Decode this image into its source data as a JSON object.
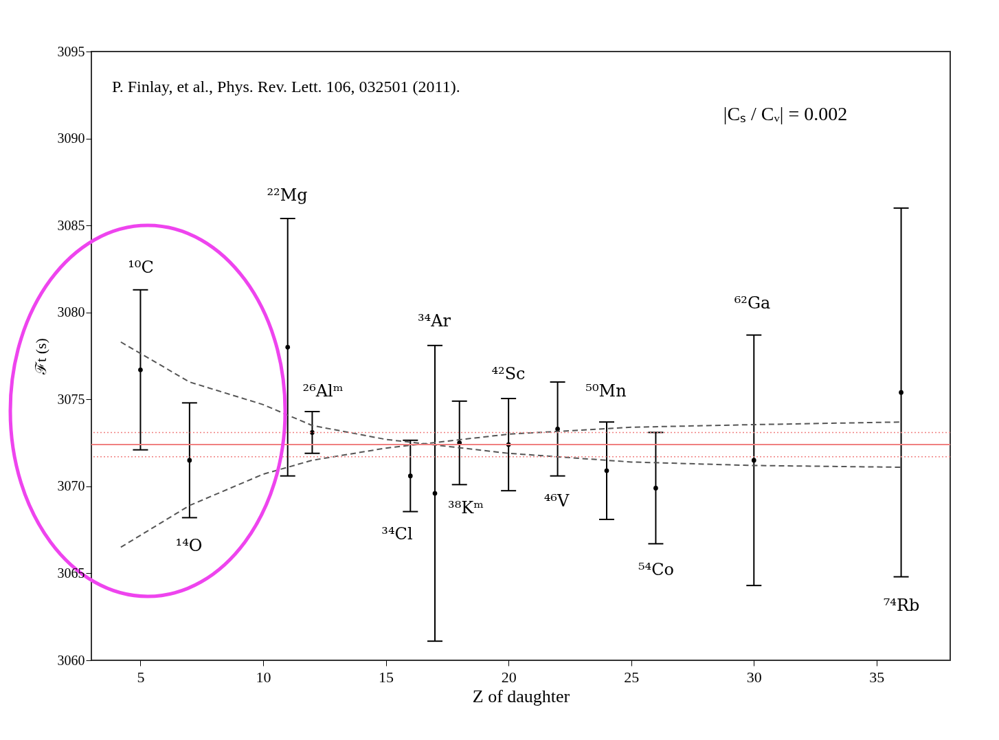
{
  "chart_data": {
    "type": "scatter",
    "xlabel": "Z of daughter",
    "ylabel": "ℱt (s)",
    "xlim": [
      3,
      38
    ],
    "ylim": [
      3060,
      3095
    ],
    "xticks": [
      5,
      10,
      15,
      20,
      25,
      30,
      35
    ],
    "yticks": [
      3060,
      3065,
      3070,
      3075,
      3080,
      3085,
      3090,
      3095
    ],
    "grid": false,
    "marker": "circle",
    "series": [
      {
        "color": "#000000",
        "x": [
          5,
          7,
          11,
          12,
          16,
          17,
          18,
          20,
          22,
          24,
          26,
          30,
          36
        ],
        "values": [
          3076.7,
          3071.5,
          3078.0,
          3073.1,
          3070.6,
          3069.6,
          3072.5,
          3072.4,
          3073.3,
          3070.9,
          3069.9,
          3071.5,
          3075.4
        ],
        "errors": [
          4.6,
          3.3,
          7.4,
          1.2,
          2.05,
          8.5,
          2.4,
          2.65,
          2.7,
          2.8,
          3.2,
          7.2,
          10.6
        ]
      },
      {
        "type": "line",
        "color": "#555555",
        "line_style": "dashed",
        "marker": "none",
        "x": [
          4.2,
          7,
          10,
          12,
          15,
          20,
          25,
          30,
          36
        ],
        "values": [
          3078.3,
          3076.0,
          3074.7,
          3073.5,
          3072.7,
          3071.9,
          3071.4,
          3071.2,
          3071.1
        ]
      },
      {
        "type": "line",
        "color": "#555555",
        "line_style": "dashed",
        "marker": "none",
        "x": [
          4.2,
          7,
          10,
          12,
          15,
          20,
          25,
          30,
          36
        ],
        "values": [
          3066.5,
          3068.9,
          3070.7,
          3071.5,
          3072.2,
          3073.0,
          3073.4,
          3073.55,
          3073.7
        ]
      }
    ],
    "ref_lines": [
      {
        "axis": "y",
        "value": 3072.4,
        "color": "#f08080",
        "line_style": "solid"
      },
      {
        "axis": "y",
        "value": 3073.1,
        "color": "#f08080",
        "line_style": "dotted"
      },
      {
        "axis": "y",
        "value": 3071.7,
        "color": "#f08080",
        "line_style": "dotted"
      }
    ],
    "annotations": [
      "P. Finlay, et al., Phys. Rev. Lett. 106, 032501 (2011).",
      "|Cₛ / Cᵥ| = 0.002",
      "¹⁰C",
      "¹⁴O",
      "²²Mg",
      "²⁶Alᵐ",
      "³⁴Ar",
      "³⁴Cl",
      "³⁸Kᵐ",
      "⁴²Sc",
      "⁴⁶V",
      "⁵⁰Mn",
      "⁵⁴Co",
      "⁶²Ga",
      "⁷⁴Rb"
    ]
  }
}
